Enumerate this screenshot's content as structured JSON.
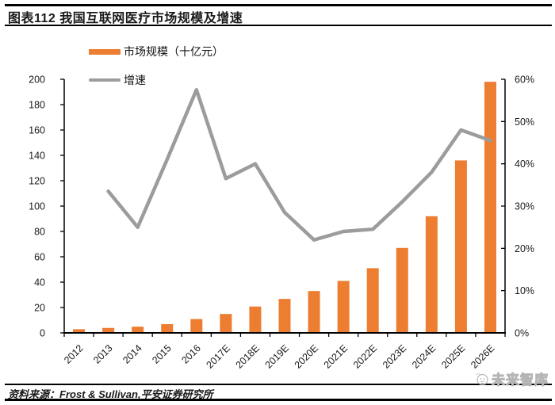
{
  "header": {
    "title": "图表112  我国互联网医疗市场规模及增速"
  },
  "legend": {
    "bar_label": "市场规模（十亿元）",
    "line_label": "增速"
  },
  "footer": {
    "source": "资料来源：Frost & Sullivan,平安证券研究所",
    "watermark": "未来智库"
  },
  "colors": {
    "bar": "#ED7D31",
    "line": "#9C9C9C",
    "axis": "#000000",
    "tick_text": "#1a1a1a",
    "watermark": "#b5b5b5"
  },
  "chart_data": {
    "type": "combo-bar-line",
    "title": "图表112  我国互联网医疗市场规模及增速",
    "categories": [
      "2012",
      "2013",
      "2014",
      "2015",
      "2016",
      "2017E",
      "2018E",
      "2019E",
      "2020E",
      "2021E",
      "2022E",
      "2023E",
      "2024E",
      "2025E",
      "2026E"
    ],
    "series": [
      {
        "name": "市场规模（十亿元）",
        "type": "bar",
        "axis": "left",
        "values": [
          2.9,
          3.9,
          4.9,
          6.9,
          10.9,
          14.9,
          20.8,
          26.8,
          33,
          41,
          51,
          67,
          92,
          136,
          198
        ]
      },
      {
        "name": "增速",
        "type": "line",
        "axis": "right",
        "unit": "%",
        "values": [
          null,
          33.5,
          25,
          41,
          57.5,
          36.5,
          40,
          28.5,
          22,
          24,
          24.5,
          31,
          38,
          48,
          45.5
        ]
      }
    ],
    "left_axis": {
      "min": 0,
      "max": 200,
      "step": 20,
      "tick_labels": [
        "0",
        "20",
        "40",
        "60",
        "80",
        "100",
        "120",
        "140",
        "160",
        "180",
        "200"
      ]
    },
    "right_axis": {
      "min": 0,
      "max": 60,
      "step": 10,
      "tick_labels": [
        "0%",
        "10%",
        "20%",
        "30%",
        "40%",
        "50%",
        "60%"
      ]
    },
    "grid": false,
    "legend_position": "top-left"
  }
}
